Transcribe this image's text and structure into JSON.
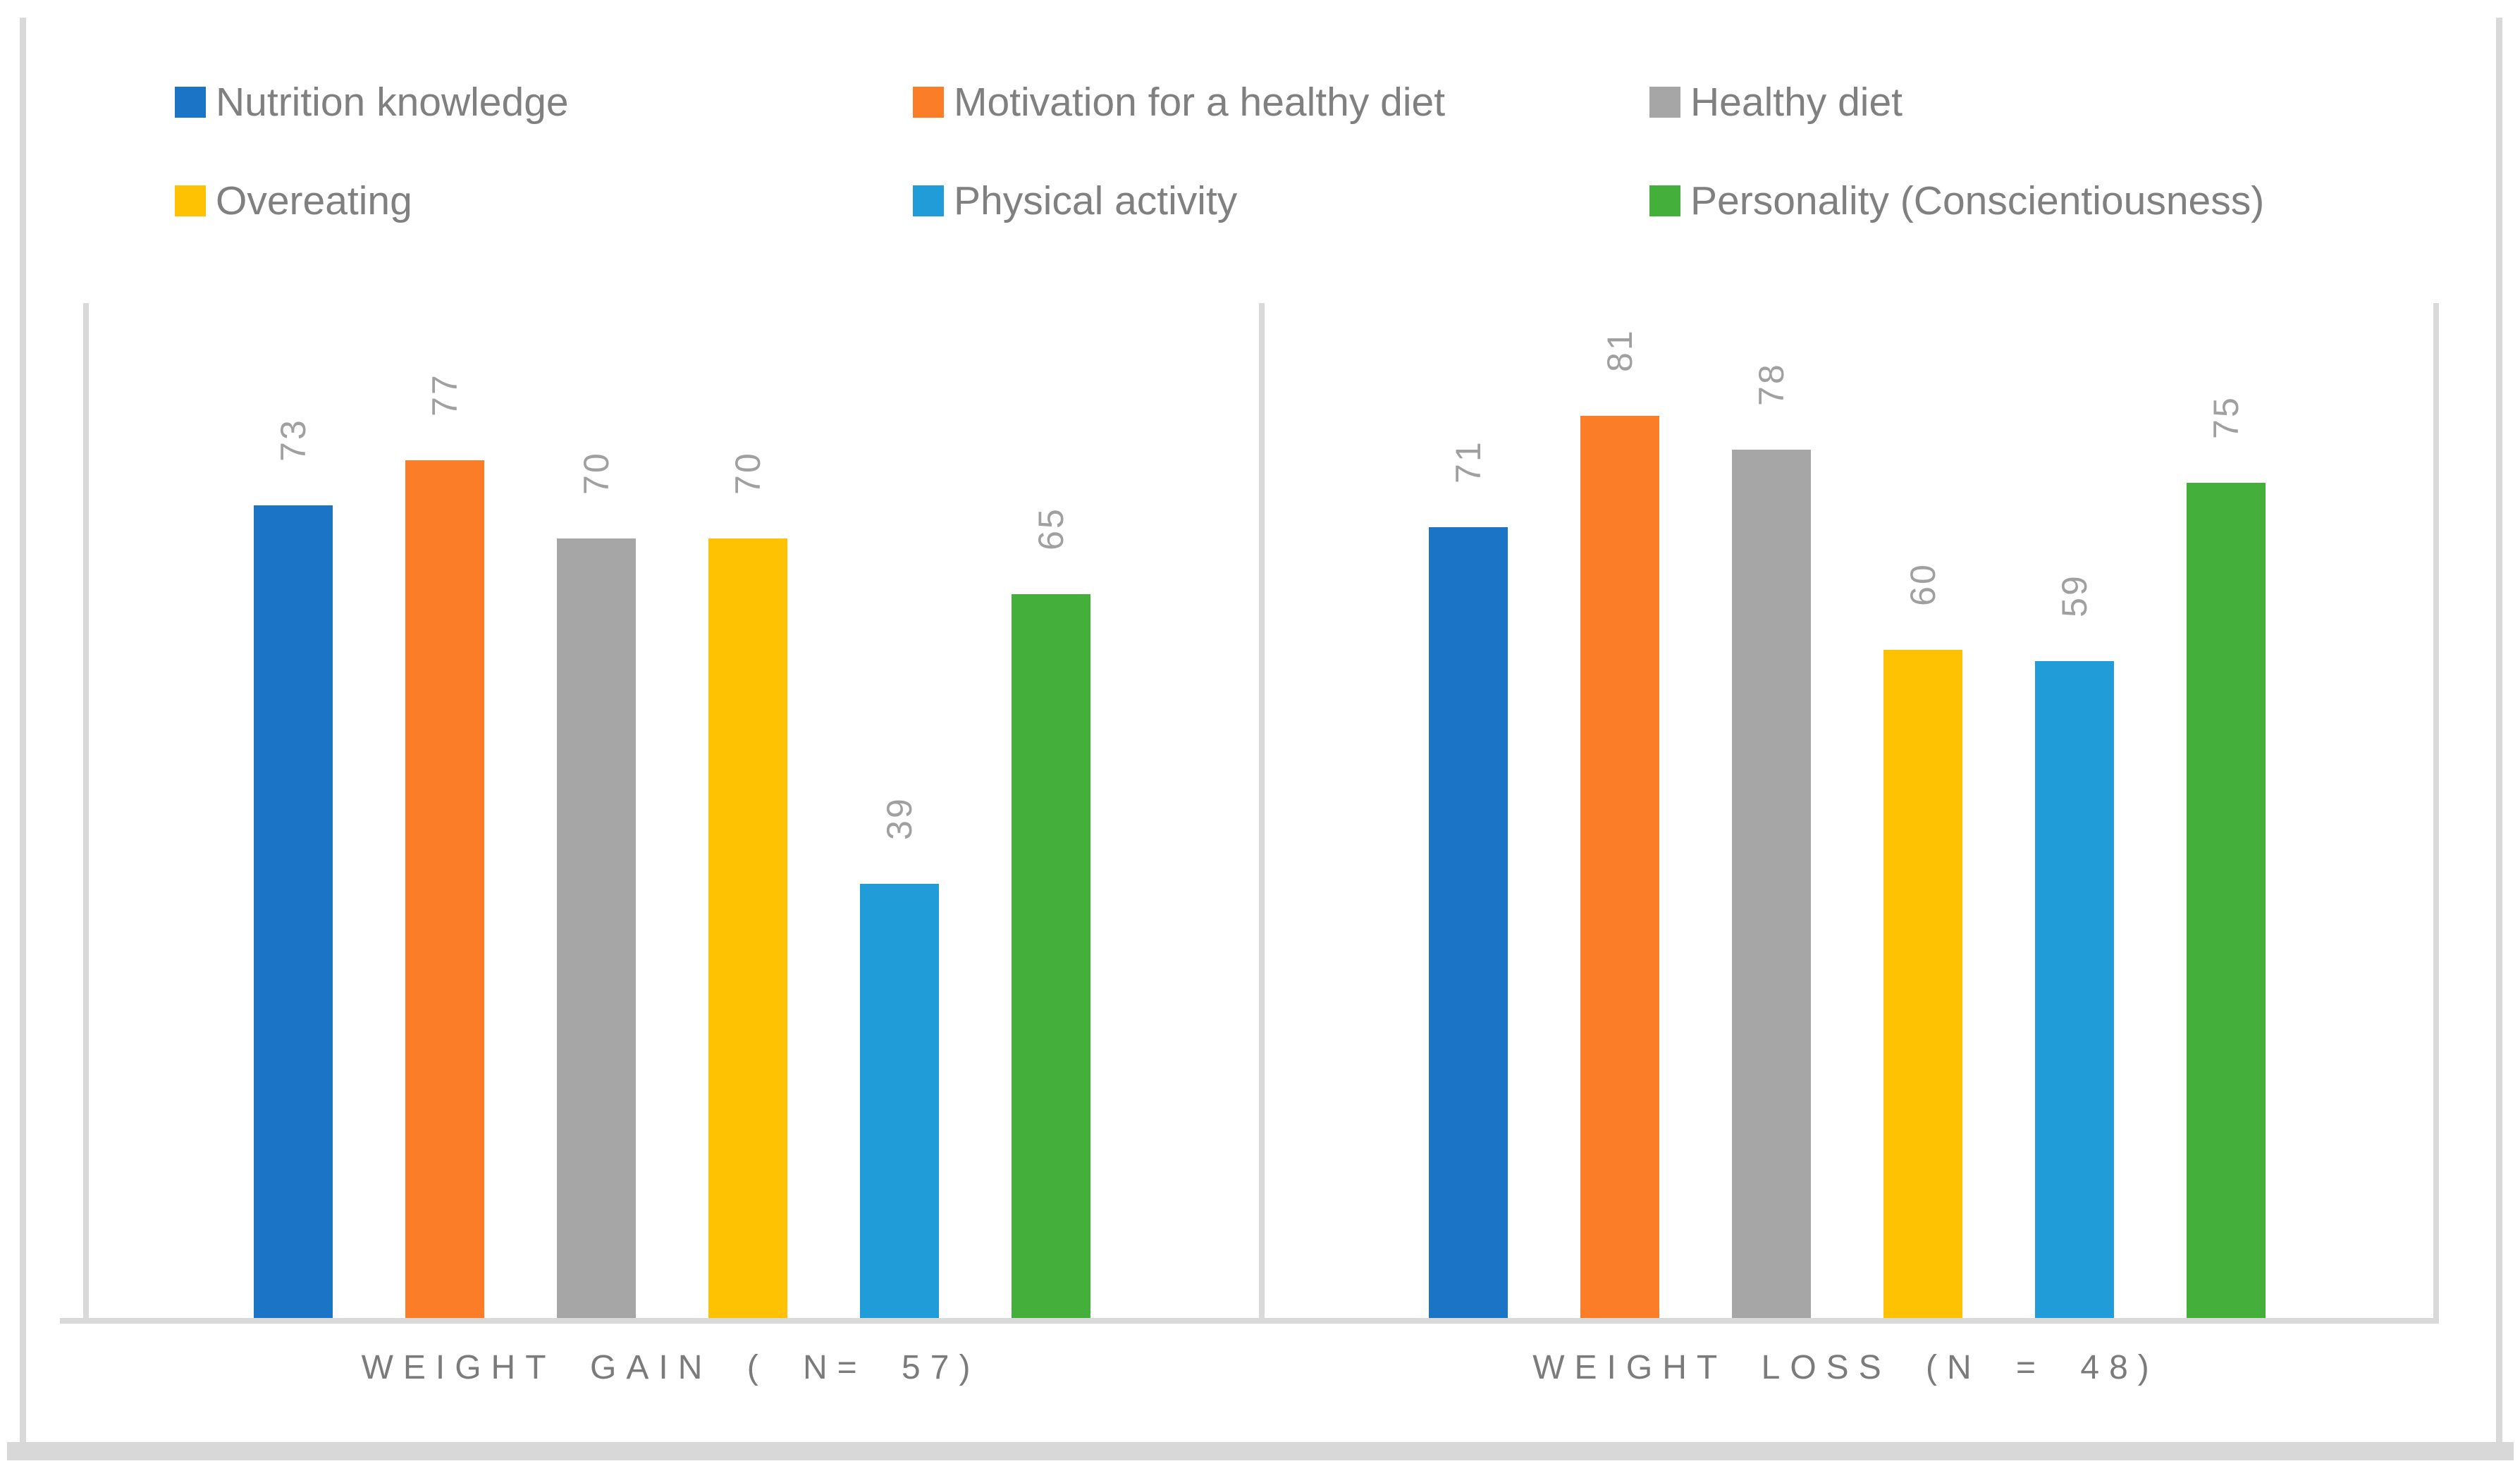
{
  "chart_data": {
    "type": "bar",
    "categories": [
      "WEIGHT GAIN ( N= 57)",
      "WEIGHT LOSS (N = 48)"
    ],
    "series": [
      {
        "name": "Nutrition knowledge",
        "color": "#1b74c5",
        "values": [
          73,
          71
        ]
      },
      {
        "name": "Motivation for a healthy diet",
        "color": "#fb7d28",
        "values": [
          77,
          81
        ]
      },
      {
        "name": "Healthy diet",
        "color": "#a6a6a6",
        "values": [
          70,
          78
        ]
      },
      {
        "name": "Overeating",
        "color": "#ffc203",
        "values": [
          70,
          60
        ]
      },
      {
        "name": "Physical activity",
        "color": "#209cd8",
        "values": [
          39,
          59
        ]
      },
      {
        "name": "Personality (Conscientiousness)",
        "color": "#44af3b",
        "values": [
          65,
          75
        ]
      }
    ],
    "title": "",
    "xlabel": "",
    "ylabel": "",
    "ylim": [
      0,
      91
    ],
    "grid": false,
    "y_axis_ticks_visible": false,
    "legend_position": "top",
    "data_labels_rotated_degrees": -90,
    "colors": {
      "axis_line": "#d9d9d9",
      "frame_border": "#d9d9d9",
      "data_label_text": "#a0a0a0",
      "category_label_text": "#7b7b7b",
      "legend_text": "#808080",
      "background": "#ffffff"
    }
  }
}
